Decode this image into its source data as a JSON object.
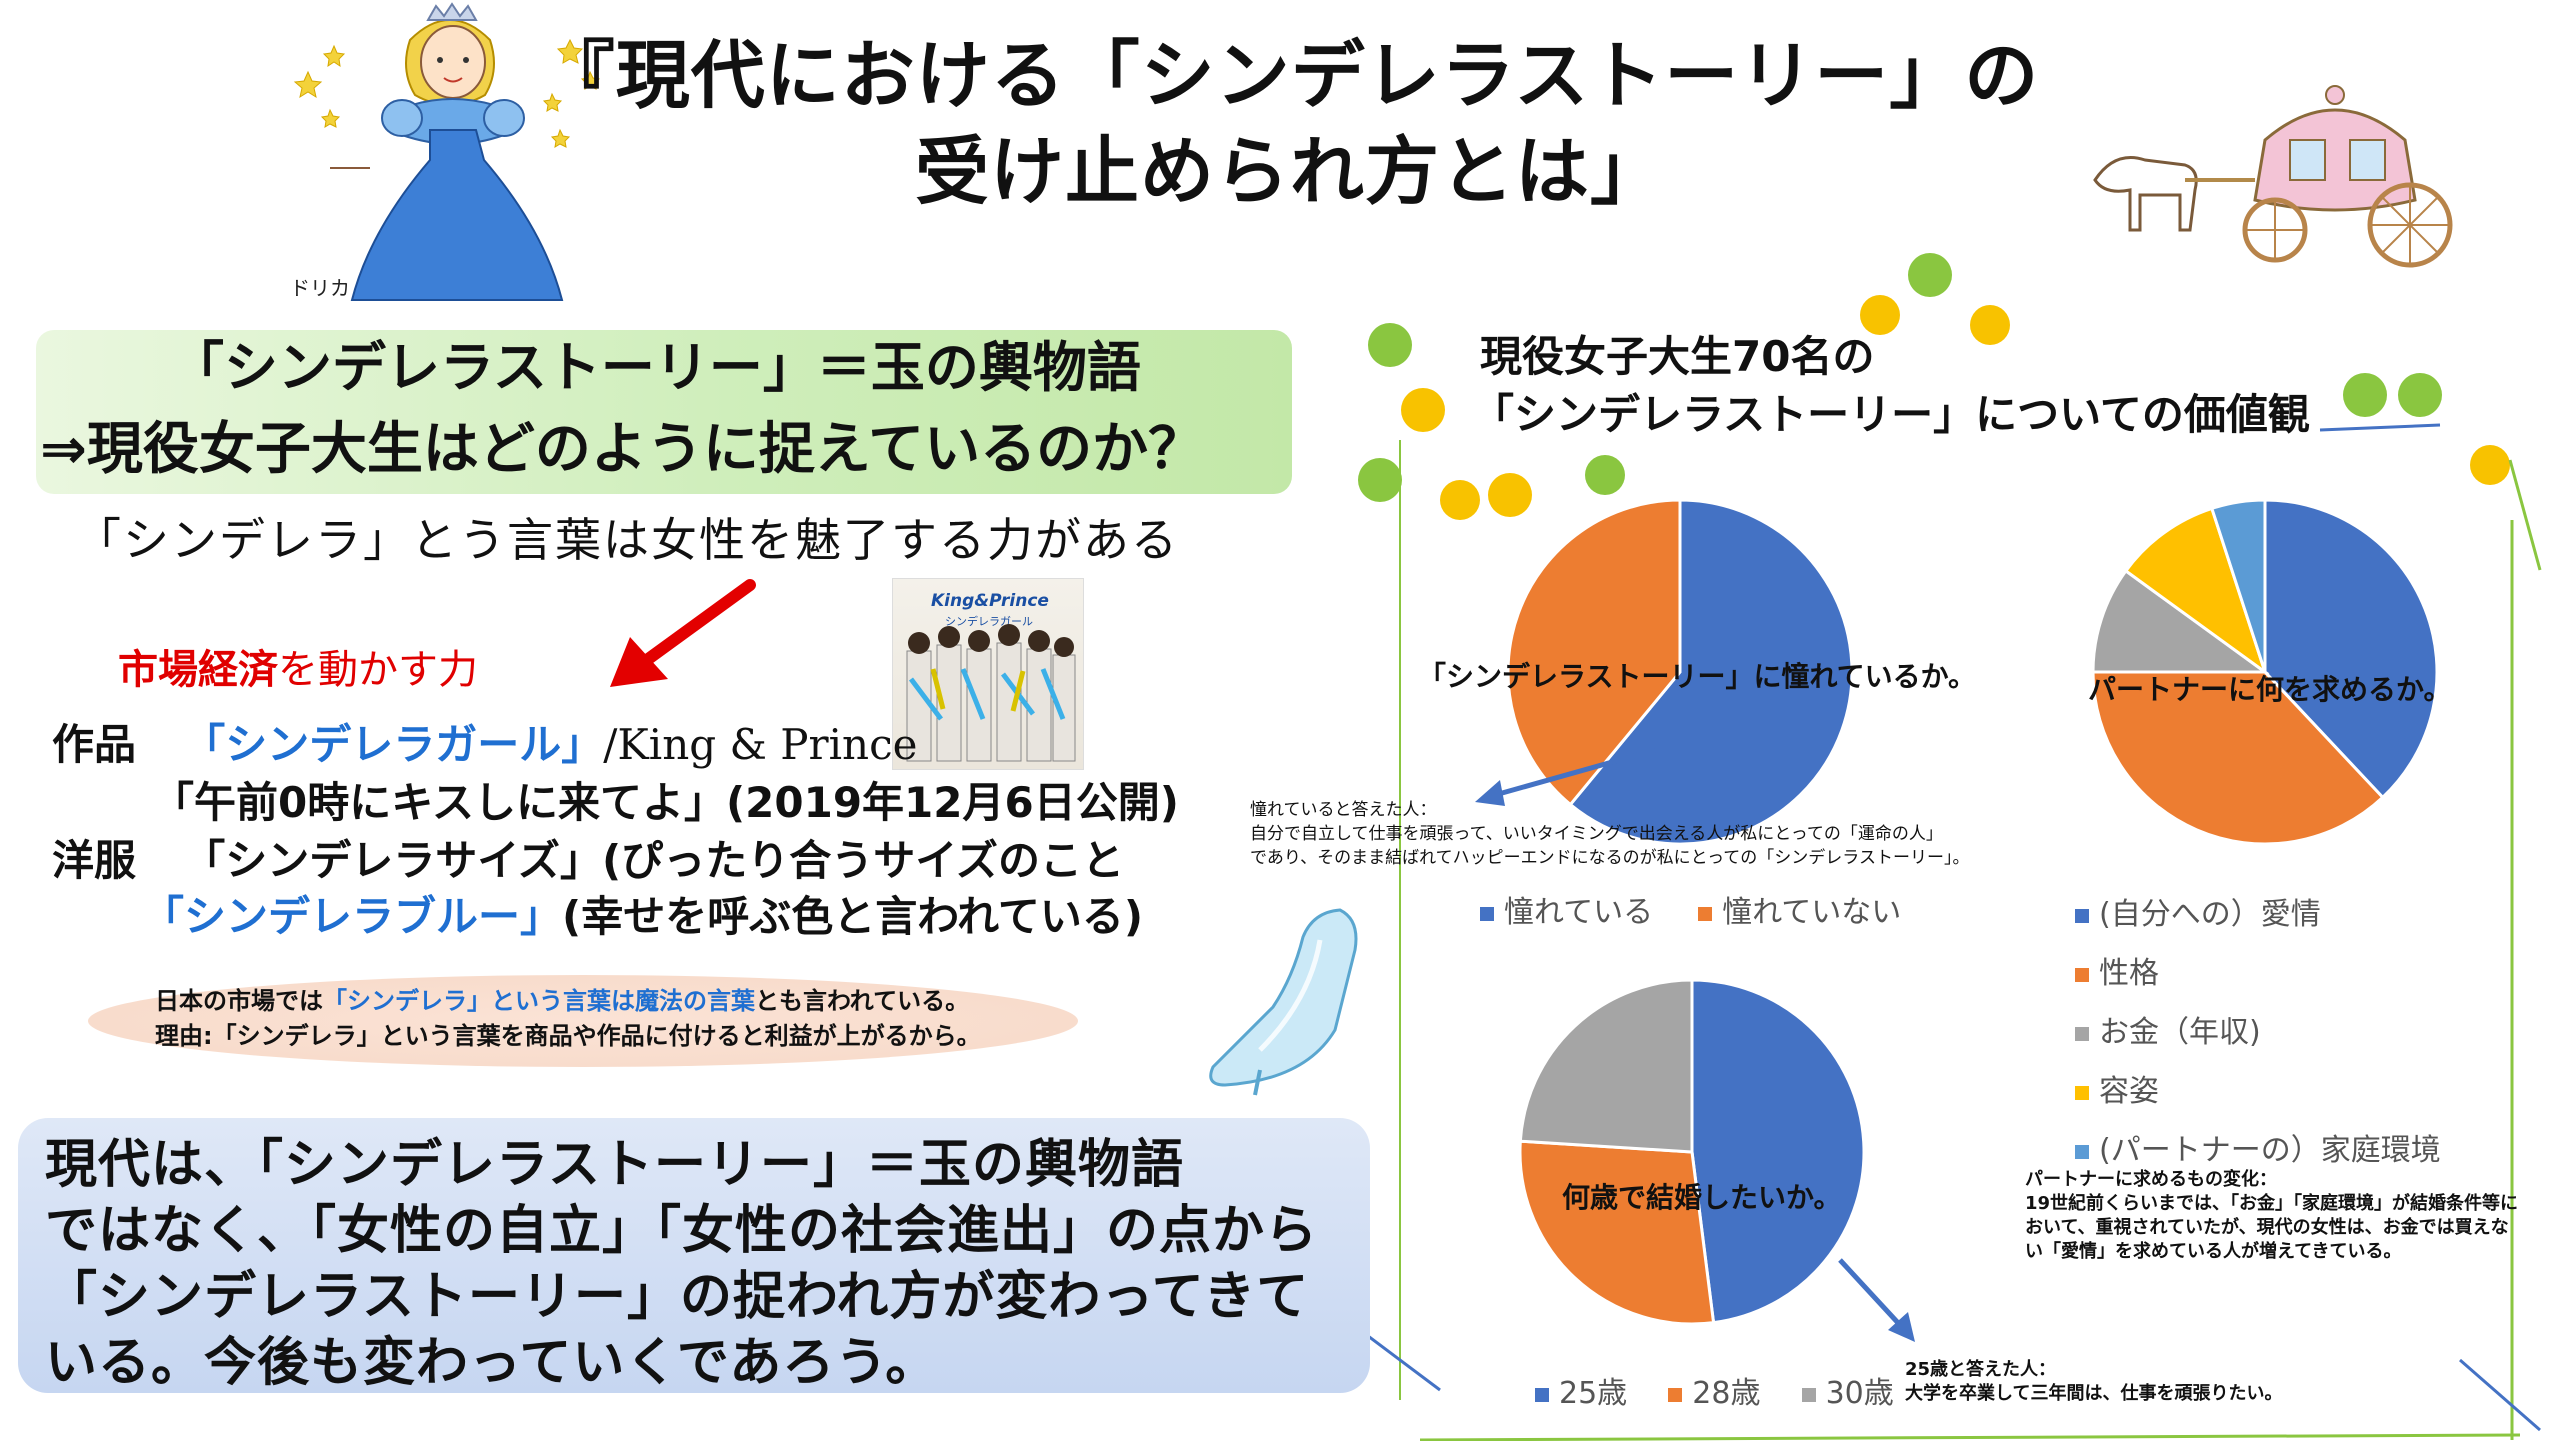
{
  "header": {
    "title_line1": "『現代における「シンデレラストーリー」の",
    "title_line2": "受け止められ方とは」",
    "character_label": "キドリカ"
  },
  "intro": {
    "line1": "「シンデレラストーリー」＝玉の輿物語",
    "line2": "⇒現役女子大生はどのように捉えているのか？",
    "line3": "「シンデレラ」とう言葉は女性を魅了する力がある",
    "market_bold": "市場経済",
    "market_rest": "を動かす力",
    "album_logo": "King&Prince",
    "album_sub": "シンデレラガール"
  },
  "works": {
    "label_works": "作品",
    "song": "「シンデレラガール」",
    "artist": "/King & Prince",
    "movie": "「午前0時にキスしに来てよ」(2019年12月6日公開)",
    "label_clothes": "洋服",
    "size": "「シンデレラサイズ」(ぴったり合うサイズのこと",
    "blue_term": "「シンデレラブルー」",
    "blue_desc": "(幸せを呼ぶ色と言われている)"
  },
  "note": {
    "l1_a": "日本の市場では",
    "l1_b": "「シンデレラ」という言葉は魔法の言葉",
    "l1_c": "とも言われている。",
    "l2": "理由:「シンデレラ」という言葉を商品や作品に付けると利益が上がるから。"
  },
  "conclusion": {
    "l1": "現代は、「シンデレラストーリー」＝玉の輿物語",
    "l2": "ではなく、「女性の自立」「女性の社会進出」の点から",
    "l3": "「シンデレラストーリー」の捉われ方が変わってきて",
    "l4": "いる。今後も変わっていくであろう。"
  },
  "survey": {
    "title_l1": "現役女子大生70名の",
    "title_l2": "「シンデレラストーリー」についての価値観"
  },
  "chart_data": [
    {
      "type": "pie",
      "title": "「シンデレラストーリー」に憧れているか。",
      "categories": [
        "憧れている",
        "憧れていない"
      ],
      "values": [
        61,
        39
      ],
      "colors": [
        "#4472c4",
        "#ed7d31"
      ],
      "legend": "bottom",
      "annotation": {
        "l1": "憧れていると答えた人：",
        "l2": "自分で自立して仕事を頑張って、いいタイミングで出会える人が私にとっての「運命の人」",
        "l3": "であり、そのまま結ばれてハッピーエンドになるのが私にとっての「シンデレラストーリー」。"
      }
    },
    {
      "type": "pie",
      "title": "パートナーに何を求めるか。",
      "categories": [
        "(自分への）愛情",
        "性格",
        "お金（年収)",
        "容姿",
        "(パートナーの）家庭環境"
      ],
      "values": [
        38,
        37,
        10,
        10,
        5
      ],
      "colors": [
        "#4472c4",
        "#ed7d31",
        "#a5a5a5",
        "#ffc000",
        "#5b9bd5"
      ],
      "legend": "right",
      "annotation": {
        "l1": "パートナーに求めるもの変化：",
        "l2": "19世紀前くらいまでは、「お金」「家庭環境」が結婚条件等に",
        "l3": "おいて、重視されていたが、現代の女性は、お金では買えな",
        "l4": "い「愛情」を求めている人が増えてきている。"
      }
    },
    {
      "type": "pie",
      "title": "何歳で結婚したいか。",
      "categories": [
        "25歳",
        "28歳",
        "30歳"
      ],
      "values": [
        48,
        28,
        24
      ],
      "colors": [
        "#4472c4",
        "#ed7d31",
        "#a5a5a5"
      ],
      "legend": "bottom",
      "annotation": {
        "l1": "25歳と答えた人：",
        "l2": "大学を卒業して三年間は、仕事を頑張りたい。"
      }
    }
  ]
}
